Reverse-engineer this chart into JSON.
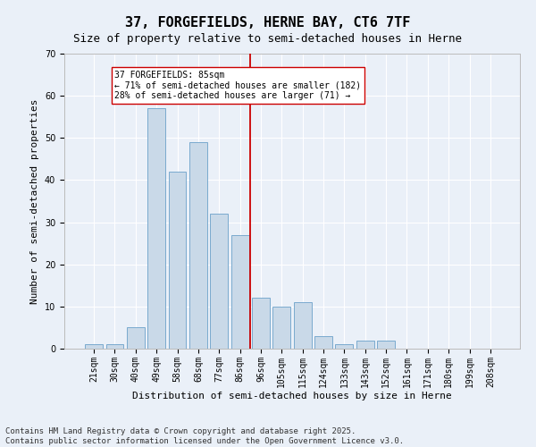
{
  "title": "37, FORGEFIELDS, HERNE BAY, CT6 7TF",
  "subtitle": "Size of property relative to semi-detached houses in Herne",
  "xlabel": "Distribution of semi-detached houses by size in Herne",
  "ylabel": "Number of semi-detached properties",
  "categories": [
    "21sqm",
    "30sqm",
    "40sqm",
    "49sqm",
    "58sqm",
    "68sqm",
    "77sqm",
    "86sqm",
    "96sqm",
    "105sqm",
    "115sqm",
    "124sqm",
    "133sqm",
    "143sqm",
    "152sqm",
    "161sqm",
    "171sqm",
    "180sqm",
    "199sqm",
    "208sqm"
  ],
  "values": [
    1,
    1,
    5,
    57,
    42,
    49,
    32,
    27,
    12,
    10,
    11,
    3,
    1,
    2,
    2,
    0,
    0,
    0,
    0,
    0
  ],
  "bar_color": "#c9d9e8",
  "bar_edge_color": "#7aaace",
  "vline_x_index": 7.5,
  "vline_color": "#cc0000",
  "annotation_text": "37 FORGEFIELDS: 85sqm\n← 71% of semi-detached houses are smaller (182)\n28% of semi-detached houses are larger (71) →",
  "annotation_box_color": "#ffffff",
  "annotation_box_edge": "#cc0000",
  "ylim": [
    0,
    70
  ],
  "yticks": [
    0,
    10,
    20,
    30,
    40,
    50,
    60,
    70
  ],
  "footer_text": "Contains HM Land Registry data © Crown copyright and database right 2025.\nContains public sector information licensed under the Open Government Licence v3.0.",
  "bg_color": "#eaf0f8",
  "plot_bg_color": "#eaf0f8",
  "title_fontsize": 11,
  "subtitle_fontsize": 9,
  "label_fontsize": 8,
  "tick_fontsize": 7,
  "annotation_fontsize": 7,
  "footer_fontsize": 6.5
}
